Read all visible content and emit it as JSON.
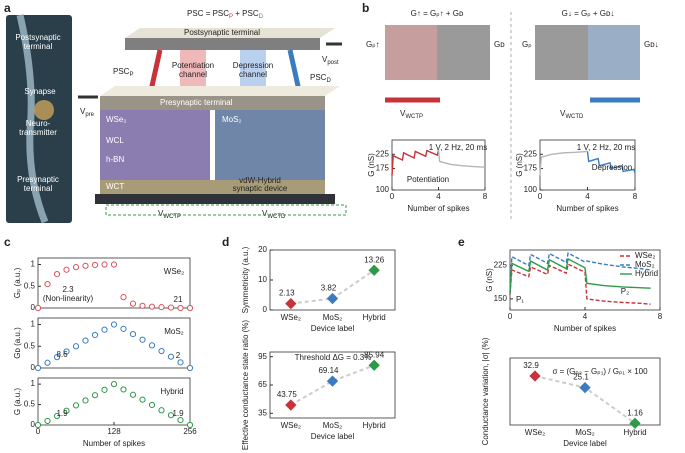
{
  "diagram": {
    "panel_labels": [
      "a",
      "b",
      "c",
      "d",
      "e"
    ],
    "photo": {
      "post": [
        "Postsynaptic",
        "terminal"
      ],
      "synapse": "Synapse",
      "nt": [
        "Neuro-",
        "transmitter"
      ],
      "pre": [
        "Presynaptic",
        "terminal"
      ]
    },
    "device": {
      "eq": [
        "PSC = PSC",
        "P",
        " + PSC",
        "D"
      ],
      "post": "Postsynaptic terminal",
      "pre": "Presynaptic terminal",
      "pot": [
        "Potentiation",
        "channel"
      ],
      "dep": [
        "Depression",
        "channel"
      ],
      "pscp": [
        "PSC",
        "P"
      ],
      "pscd": [
        "PSC",
        "D"
      ],
      "vpre": [
        "V",
        "pre"
      ],
      "vpost": [
        "V",
        "post"
      ],
      "layers": [
        "WSe₂",
        "WCL",
        "h-BN",
        "WCT"
      ],
      "mos2": "MoS₂",
      "hybrid": [
        "vdW-Hybrid",
        "synaptic device"
      ],
      "vp": [
        "V",
        "WCTP"
      ],
      "vd": [
        "V",
        "WCTD"
      ]
    },
    "b": {
      "eq1": "G↑ = Gₚ↑ + Gᴅ",
      "gp1": "Gₚ↑",
      "gd1": "Gᴅ",
      "v1": [
        "V",
        "WCTP"
      ],
      "eq2": "G↓ = Gₚ + Gᴅ↓",
      "gp2": "Gₚ",
      "gd2": "Gᴅ↓",
      "v2": [
        "V",
        "WCTD"
      ]
    }
  },
  "chart_data": [
    {
      "type": "line",
      "ylabel": "G (nS)",
      "xlabel": "Number of spikes",
      "xlim": [
        0,
        8
      ],
      "xticks": [
        0,
        4,
        8
      ],
      "ylim": [
        100,
        275
      ],
      "yticks": [
        100,
        175,
        225
      ],
      "series": [
        {
          "color": "#c8323a",
          "x": [
            0,
            0.1,
            0.9,
            1.0,
            1.9,
            2.0,
            2.9,
            3.0,
            3.9,
            4.0
          ],
          "values": [
            150,
            220,
            205,
            230,
            212,
            235,
            218,
            238,
            222,
            240
          ]
        },
        {
          "color": "#b5b5b5",
          "x": [
            4.0,
            4.1,
            5,
            6,
            7,
            8
          ],
          "values": [
            240,
            200,
            190,
            185,
            182,
            180
          ]
        }
      ],
      "annotations": [
        {
          "text": "1 V, 2 Hz, 20 ms",
          "color": "#222"
        },
        {
          "text": "Potentiation",
          "color": "#c8323a"
        }
      ]
    },
    {
      "type": "line",
      "ylabel": "G (nS)",
      "xlabel": "Number of spikes",
      "xlim": [
        0,
        8
      ],
      "xticks": [
        0,
        4,
        8
      ],
      "ylim": [
        100,
        275
      ],
      "yticks": [
        100,
        175,
        225
      ],
      "series": [
        {
          "color": "#b5b5b5",
          "x": [
            0,
            0.1,
            1,
            2,
            3,
            4
          ],
          "values": [
            150,
            215,
            225,
            230,
            232,
            235
          ]
        },
        {
          "color": "#3b7cc0",
          "x": [
            4,
            4.1,
            4.9,
            5,
            5.9,
            6,
            6.9,
            7,
            7.9,
            8
          ],
          "values": [
            235,
            200,
            210,
            185,
            195,
            175,
            185,
            165,
            172,
            160
          ]
        }
      ],
      "annotations": [
        {
          "text": "1 V, 2 Hz, 20 ms",
          "color": "#222"
        },
        {
          "text": "Depression",
          "color": "#3b7cc0"
        }
      ]
    },
    {
      "type": "scatter",
      "ylabel": "Gₚ (a.u.)",
      "xlim": [
        0,
        256
      ],
      "ylim": [
        0,
        1.15
      ],
      "yticks": [
        0,
        0.5,
        1
      ],
      "color": "#d9545c",
      "x": [
        0,
        16,
        32,
        48,
        64,
        80,
        96,
        112,
        128,
        144,
        160,
        176,
        192,
        208,
        224,
        240,
        256
      ],
      "values": [
        0,
        0.55,
        0.78,
        0.88,
        0.94,
        0.97,
        0.99,
        1.0,
        1.0,
        0.25,
        0.1,
        0.05,
        0.03,
        0.02,
        0.01,
        0,
        0
      ],
      "annotations": [
        {
          "text": "2.3",
          "color": "#c8323a"
        },
        {
          "text": "(Non-linearity)",
          "color": "#c8323a"
        },
        {
          "text": "21",
          "color": "#c8323a"
        },
        {
          "text": "WSe₂",
          "color": "#c8323a"
        }
      ]
    },
    {
      "type": "scatter",
      "ylabel": "Gᴅ (a.u.)",
      "xlim": [
        0,
        256
      ],
      "ylim": [
        0,
        1.15
      ],
      "yticks": [
        0,
        0.5,
        1
      ],
      "color": "#3b7cc0",
      "x": [
        0,
        16,
        32,
        48,
        64,
        80,
        96,
        112,
        128,
        144,
        160,
        176,
        192,
        208,
        224,
        240,
        256
      ],
      "values": [
        0,
        0.12,
        0.25,
        0.38,
        0.5,
        0.63,
        0.76,
        0.88,
        1.0,
        0.9,
        0.78,
        0.65,
        0.52,
        0.39,
        0.26,
        0.13,
        0
      ],
      "annotations": [
        {
          "text": "8.6",
          "color": "#3b7cc0"
        },
        {
          "text": "2",
          "color": "#3b7cc0"
        },
        {
          "text": "MoS₂",
          "color": "#3b7cc0"
        }
      ]
    },
    {
      "type": "scatter",
      "ylabel": "G (a.u.)",
      "xlabel": "Number of spikes",
      "xlim": [
        0,
        256
      ],
      "xticks": [
        0,
        128,
        256
      ],
      "ylim": [
        0,
        1.15
      ],
      "yticks": [
        0,
        0.5,
        1
      ],
      "color": "#2e9a48",
      "x": [
        0,
        16,
        32,
        48,
        64,
        80,
        96,
        112,
        128,
        144,
        160,
        176,
        192,
        208,
        224,
        240,
        256
      ],
      "values": [
        0,
        0.1,
        0.22,
        0.35,
        0.48,
        0.6,
        0.73,
        0.86,
        1.0,
        0.87,
        0.74,
        0.62,
        0.49,
        0.36,
        0.24,
        0.12,
        0
      ],
      "annotations": [
        {
          "text": "1.9",
          "color": "#2e9a48"
        },
        {
          "text": "1.9",
          "color": "#2e9a48"
        },
        {
          "text": "Hybrid",
          "color": "#2e9a48"
        }
      ]
    },
    {
      "type": "dot",
      "ylabel": "Symmetricity (a.u.)",
      "xlabel": "Device label",
      "categories": [
        "WSe₂",
        "MoS₂",
        "Hybrid"
      ],
      "values": [
        2.13,
        3.82,
        13.26
      ],
      "colors": [
        "#c8323a",
        "#3b7cc0",
        "#2e9a48"
      ],
      "ylim": [
        0,
        20
      ],
      "yticks": [
        0,
        10,
        20
      ]
    },
    {
      "type": "dot",
      "ylabel": "Effective conductance state ratio (%)",
      "xlabel": "Device label",
      "categories": [
        "WSe₂",
        "MoS₂",
        "Hybrid"
      ],
      "values": [
        43.75,
        69.14,
        85.94
      ],
      "colors": [
        "#c8323a",
        "#3b7cc0",
        "#2e9a48"
      ],
      "ylim": [
        30,
        100
      ],
      "yticks": [
        35,
        65,
        95
      ],
      "annotations": [
        {
          "text": "Threshold ΔG = 0.3%",
          "color": "#222"
        }
      ]
    },
    {
      "type": "line",
      "ylabel": "G (nS)",
      "xlabel": "Number of spikes",
      "xlim": [
        0,
        8
      ],
      "xticks": [
        0,
        4,
        8
      ],
      "ylim": [
        125,
        260
      ],
      "yticks": [
        150,
        225
      ],
      "x": [
        0,
        0.1,
        1,
        1.1,
        2,
        2.1,
        3,
        3.1,
        4,
        4.1,
        5,
        6,
        7,
        7.5
      ],
      "series": [
        {
          "name": "WSe₂",
          "color": "#c8323a",
          "dash": true,
          "values": [
            160,
            215,
            200,
            222,
            205,
            225,
            208,
            228,
            210,
            150,
            145,
            142,
            140,
            138
          ]
        },
        {
          "name": "MoS₂",
          "color": "#3b7cc0",
          "dash": true,
          "values": [
            165,
            245,
            225,
            250,
            230,
            252,
            232,
            253,
            233,
            235,
            228,
            222,
            218,
            215
          ]
        },
        {
          "name": "Hybrid",
          "color": "#2e9a48",
          "dash": false,
          "values": [
            162,
            230,
            212,
            235,
            215,
            238,
            218,
            240,
            220,
            185,
            180,
            177,
            175,
            174
          ]
        }
      ],
      "annotations": [
        {
          "text": "P₁",
          "color": "#222"
        },
        {
          "text": "P₂",
          "color": "#222"
        }
      ]
    },
    {
      "type": "dot",
      "ylabel": "Conductance variation, |σ| (%)",
      "xlabel": "Device label",
      "categories": [
        "WSe₂",
        "MoS₂",
        "Hybrid"
      ],
      "values": [
        32.9,
        25.1,
        1.16
      ],
      "colors": [
        "#c8323a",
        "#3b7cc0",
        "#2e9a48"
      ],
      "ylim": [
        0,
        45
      ],
      "annotations": [
        {
          "text": "σ = (Gₚ₂ − Gₚ₁) / Gₚ₁ × 100",
          "color": "#222"
        }
      ]
    }
  ]
}
